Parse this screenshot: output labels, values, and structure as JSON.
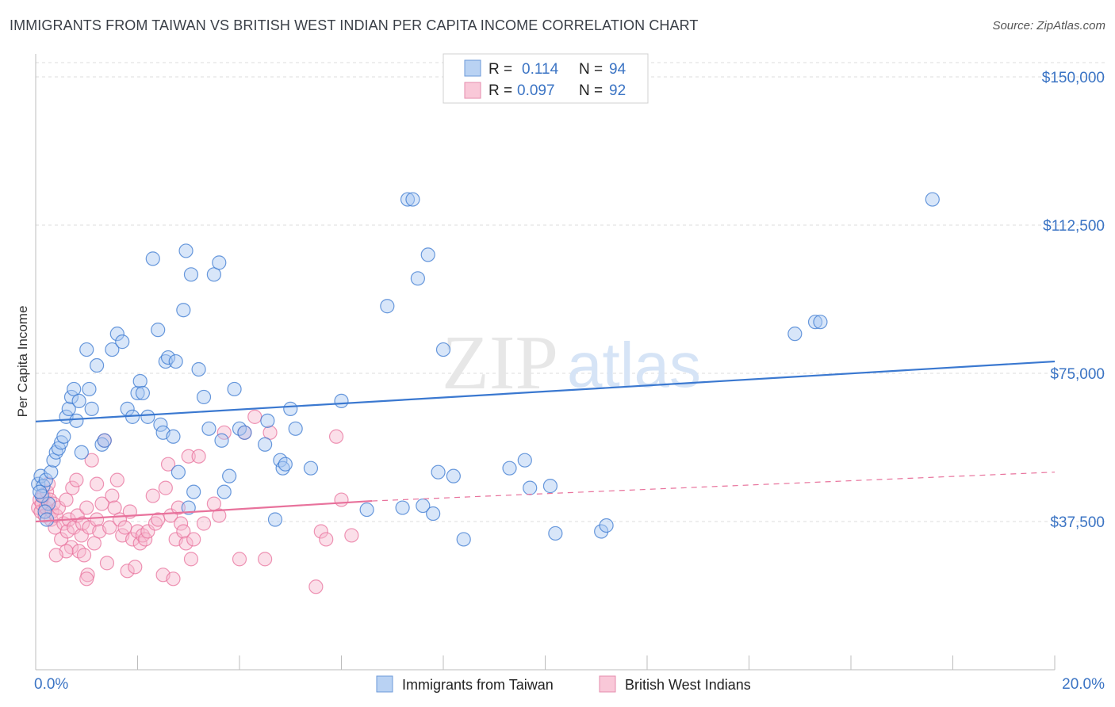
{
  "title": "IMMIGRANTS FROM TAIWAN VS BRITISH WEST INDIAN PER CAPITA INCOME CORRELATION CHART",
  "source": "Source: ZipAtlas.com",
  "watermark": {
    "zip": "ZIP",
    "atlas": "atlas"
  },
  "colors": {
    "blue": "#3a78d0",
    "blue_fill": "#a9c8f2",
    "pink": "#e8729c",
    "pink_fill": "#f6b9cf",
    "axis_text": "#3b74c4",
    "grid": "#d9d9d9"
  },
  "legend": {
    "rows": [
      {
        "r_label": "R =",
        "r_value": "0.114",
        "n_label": "N =",
        "n_value": "94"
      },
      {
        "r_label": "R =",
        "r_value": "0.097",
        "n_label": "N =",
        "n_value": "92"
      }
    ]
  },
  "chart_data": {
    "type": "scatter",
    "ylabel": "Per Capita Income",
    "x_tick_labels": [
      "0.0%",
      "20.0%"
    ],
    "y_tick_labels": [
      "$37,500",
      "$75,000",
      "$112,500",
      "$150,000"
    ],
    "xlim": [
      0,
      20
    ],
    "ylim": [
      0,
      150000
    ],
    "yticks": [
      37500,
      75000,
      112500,
      150000
    ],
    "grid": true,
    "series": [
      {
        "name": "Immigrants from Taiwan",
        "color": "#3a78d0",
        "trend": {
          "x0": 0,
          "y0": 62800,
          "x1": 20,
          "y1": 78000
        },
        "points": [
          [
            0.05,
            47000
          ],
          [
            0.1,
            49000
          ],
          [
            0.15,
            46500
          ],
          [
            0.2,
            48000
          ],
          [
            0.3,
            50000
          ],
          [
            0.35,
            53000
          ],
          [
            0.4,
            55000
          ],
          [
            0.45,
            56000
          ],
          [
            0.5,
            57500
          ],
          [
            0.55,
            59000
          ],
          [
            0.6,
            64000
          ],
          [
            0.65,
            66000
          ],
          [
            0.7,
            69000
          ],
          [
            0.75,
            71000
          ],
          [
            0.8,
            63000
          ],
          [
            0.85,
            68000
          ],
          [
            0.9,
            55000
          ],
          [
            1.0,
            81000
          ],
          [
            1.05,
            71000
          ],
          [
            1.1,
            66000
          ],
          [
            1.2,
            77000
          ],
          [
            1.3,
            57000
          ],
          [
            1.35,
            58000
          ],
          [
            1.5,
            81000
          ],
          [
            1.6,
            85000
          ],
          [
            1.7,
            83000
          ],
          [
            1.8,
            66000
          ],
          [
            1.9,
            64000
          ],
          [
            2.0,
            70000
          ],
          [
            2.05,
            73000
          ],
          [
            2.1,
            70000
          ],
          [
            2.2,
            64000
          ],
          [
            2.3,
            104000
          ],
          [
            2.4,
            86000
          ],
          [
            2.45,
            62000
          ],
          [
            2.5,
            60000
          ],
          [
            2.55,
            78000
          ],
          [
            2.6,
            79000
          ],
          [
            2.7,
            59000
          ],
          [
            2.75,
            78000
          ],
          [
            2.8,
            50000
          ],
          [
            2.9,
            91000
          ],
          [
            2.95,
            106000
          ],
          [
            3.0,
            41000
          ],
          [
            3.05,
            100000
          ],
          [
            3.1,
            45000
          ],
          [
            3.2,
            76000
          ],
          [
            3.3,
            69000
          ],
          [
            3.4,
            61000
          ],
          [
            3.5,
            100000
          ],
          [
            3.6,
            103000
          ],
          [
            3.65,
            58000
          ],
          [
            3.7,
            45000
          ],
          [
            3.8,
            49000
          ],
          [
            3.9,
            71000
          ],
          [
            4.0,
            61000
          ],
          [
            4.1,
            60000
          ],
          [
            4.5,
            57000
          ],
          [
            4.55,
            63000
          ],
          [
            4.7,
            38000
          ],
          [
            4.8,
            53000
          ],
          [
            4.85,
            51000
          ],
          [
            4.9,
            52000
          ],
          [
            5.0,
            66000
          ],
          [
            5.1,
            61000
          ],
          [
            5.4,
            51000
          ],
          [
            6.0,
            68000
          ],
          [
            6.5,
            40500
          ],
          [
            6.9,
            92000
          ],
          [
            7.2,
            41000
          ],
          [
            7.3,
            119000
          ],
          [
            7.4,
            119000
          ],
          [
            7.5,
            99000
          ],
          [
            7.6,
            41500
          ],
          [
            7.7,
            105000
          ],
          [
            7.8,
            39500
          ],
          [
            7.9,
            50000
          ],
          [
            8.0,
            81000
          ],
          [
            8.2,
            49000
          ],
          [
            8.4,
            33000
          ],
          [
            9.3,
            51000
          ],
          [
            9.6,
            53000
          ],
          [
            9.7,
            46000
          ],
          [
            10.1,
            46500
          ],
          [
            10.2,
            34500
          ],
          [
            11.1,
            35000
          ],
          [
            11.2,
            36500
          ],
          [
            14.9,
            85000
          ],
          [
            15.3,
            88000
          ],
          [
            15.4,
            88000
          ],
          [
            17.6,
            119000
          ],
          [
            0.25,
            42000
          ],
          [
            0.12,
            44000
          ],
          [
            0.08,
            45000
          ],
          [
            0.18,
            40000
          ],
          [
            0.22,
            38000
          ]
        ]
      },
      {
        "name": "British West Indians",
        "color": "#e8729c",
        "trend": {
          "x0": 0,
          "y0": 37500,
          "x1": 6.6,
          "y1": 42700,
          "dash_x1": 20,
          "dash_y1": 50000
        },
        "points": [
          [
            0.05,
            41000
          ],
          [
            0.08,
            43000
          ],
          [
            0.1,
            40000
          ],
          [
            0.12,
            42000
          ],
          [
            0.15,
            44000
          ],
          [
            0.18,
            39000
          ],
          [
            0.2,
            41000
          ],
          [
            0.22,
            45000
          ],
          [
            0.25,
            47000
          ],
          [
            0.28,
            43000
          ],
          [
            0.3,
            38000
          ],
          [
            0.32,
            40000
          ],
          [
            0.35,
            42000
          ],
          [
            0.38,
            36000
          ],
          [
            0.4,
            39000
          ],
          [
            0.45,
            41000
          ],
          [
            0.5,
            33000
          ],
          [
            0.55,
            37000
          ],
          [
            0.6,
            43000
          ],
          [
            0.62,
            35000
          ],
          [
            0.65,
            38000
          ],
          [
            0.7,
            31000
          ],
          [
            0.72,
            46000
          ],
          [
            0.75,
            36000
          ],
          [
            0.8,
            48000
          ],
          [
            0.82,
            39000
          ],
          [
            0.85,
            30000
          ],
          [
            0.9,
            34000
          ],
          [
            0.92,
            37000
          ],
          [
            0.95,
            29000
          ],
          [
            1.0,
            41000
          ],
          [
            1.02,
            24000
          ],
          [
            1.05,
            36000
          ],
          [
            1.1,
            53000
          ],
          [
            1.15,
            32000
          ],
          [
            1.2,
            38000
          ],
          [
            1.25,
            35000
          ],
          [
            1.3,
            42000
          ],
          [
            1.35,
            58000
          ],
          [
            1.4,
            27000
          ],
          [
            1.45,
            36000
          ],
          [
            1.5,
            44000
          ],
          [
            1.55,
            41000
          ],
          [
            1.6,
            48000
          ],
          [
            1.65,
            38000
          ],
          [
            1.7,
            34000
          ],
          [
            1.75,
            36000
          ],
          [
            1.8,
            25000
          ],
          [
            1.85,
            40000
          ],
          [
            1.9,
            33000
          ],
          [
            1.95,
            26000
          ],
          [
            2.0,
            35000
          ],
          [
            2.05,
            32000
          ],
          [
            2.1,
            34000
          ],
          [
            2.15,
            33000
          ],
          [
            2.2,
            35000
          ],
          [
            2.3,
            44000
          ],
          [
            2.35,
            37000
          ],
          [
            2.4,
            38000
          ],
          [
            2.5,
            24000
          ],
          [
            2.55,
            46000
          ],
          [
            2.6,
            52000
          ],
          [
            2.65,
            39000
          ],
          [
            2.7,
            23000
          ],
          [
            2.75,
            33000
          ],
          [
            2.8,
            41000
          ],
          [
            2.85,
            37000
          ],
          [
            2.9,
            35000
          ],
          [
            2.95,
            32000
          ],
          [
            3.0,
            54000
          ],
          [
            3.05,
            28000
          ],
          [
            3.1,
            33000
          ],
          [
            3.2,
            54000
          ],
          [
            3.3,
            37000
          ],
          [
            3.5,
            42000
          ],
          [
            3.6,
            39000
          ],
          [
            3.7,
            60000
          ],
          [
            4.0,
            28000
          ],
          [
            4.1,
            60000
          ],
          [
            4.3,
            64000
          ],
          [
            4.5,
            28000
          ],
          [
            4.6,
            60000
          ],
          [
            5.5,
            21000
          ],
          [
            5.6,
            35000
          ],
          [
            5.7,
            33000
          ],
          [
            5.9,
            59000
          ],
          [
            6.0,
            43000
          ],
          [
            6.2,
            34000
          ],
          [
            0.6,
            30000
          ],
          [
            1.0,
            23000
          ],
          [
            1.2,
            47000
          ],
          [
            0.4,
            29000
          ]
        ]
      }
    ]
  }
}
